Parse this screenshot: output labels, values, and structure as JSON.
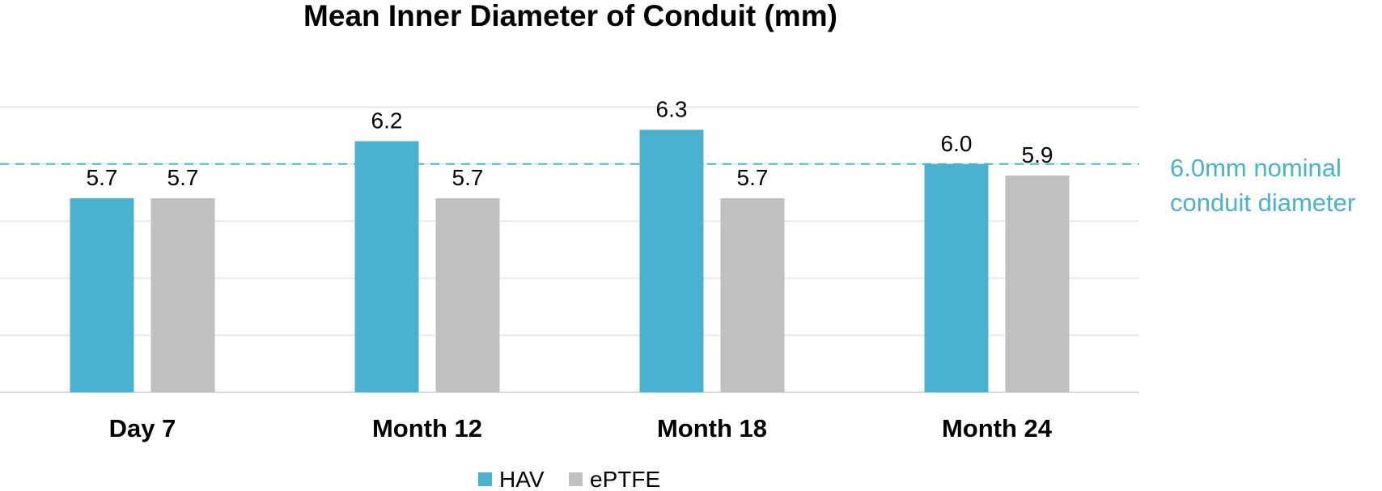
{
  "chart_data": {
    "type": "bar",
    "title": "Mean Inner Diameter of Conduit (mm)",
    "xlabel": "",
    "ylabel": "",
    "categories": [
      "Day 7",
      "Month 12",
      "Month 18",
      "Month 24"
    ],
    "series": [
      {
        "name": "HAV",
        "color": "#4ab1cf",
        "values": [
          5.7,
          6.2,
          6.3,
          6.0
        ]
      },
      {
        "name": "ePTFE",
        "color": "#c0c0c0",
        "values": [
          5.7,
          5.7,
          5.7,
          5.9
        ]
      }
    ],
    "data_labels": [
      [
        "5.7",
        "6.2",
        "6.3",
        "6.0"
      ],
      [
        "5.7",
        "5.7",
        "5.7",
        "5.9"
      ]
    ],
    "ylim": [
      4.0,
      6.7
    ],
    "grid_step": 0.5,
    "grid": true,
    "reference_line": {
      "value": 6.0,
      "label_lines": [
        "6.0mm nominal",
        "conduit diameter"
      ],
      "color": "#4ab1cf"
    },
    "legend": {
      "position": "bottom-center",
      "entries": [
        "HAV",
        "ePTFE"
      ]
    }
  }
}
